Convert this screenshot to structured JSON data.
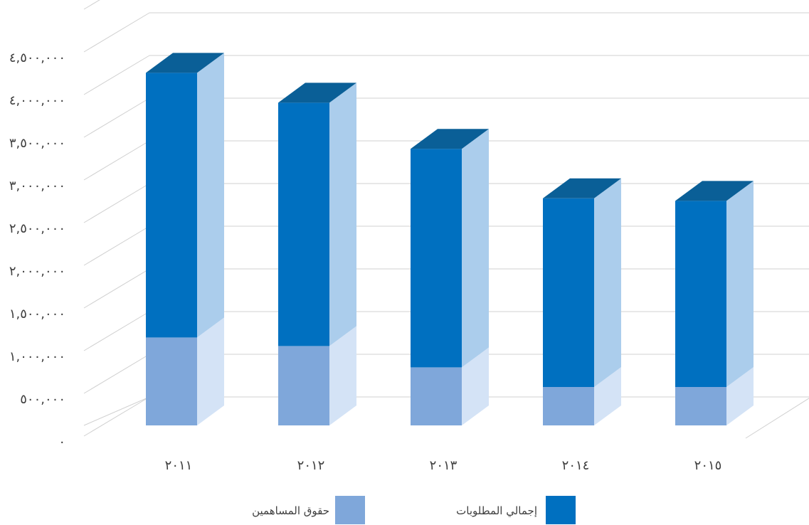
{
  "chart_data": {
    "type": "bar",
    "stacked": true,
    "three_d": true,
    "categories": [
      "٢٠١١",
      "٢٠١٢",
      "٢٠١٣",
      "٢٠١٤",
      "٢٠١٥"
    ],
    "series": [
      {
        "name": "حقوق المساهمين",
        "values": [
          1030000,
          930000,
          680000,
          450000,
          450000
        ],
        "color": "#7fa7da"
      },
      {
        "name": "إجمالي المطلوبات",
        "values": [
          3100000,
          2850000,
          2560000,
          2210000,
          2180000
        ],
        "color": "#0070c0"
      }
    ],
    "y_ticks": [
      {
        "value": 0,
        "label": "٠"
      },
      {
        "value": 500000,
        "label": "٥٠٠,٠٠٠"
      },
      {
        "value": 1000000,
        "label": "١,٠٠٠,٠٠٠"
      },
      {
        "value": 1500000,
        "label": "١,٥٠٠,٠٠٠"
      },
      {
        "value": 2000000,
        "label": "٢,٠٠٠,٠٠٠"
      },
      {
        "value": 2500000,
        "label": "٢,٥٠٠,٠٠٠"
      },
      {
        "value": 3000000,
        "label": "٣,٠٠٠,٠٠٠"
      },
      {
        "value": 3500000,
        "label": "٣,٥٠٠,٠٠٠"
      },
      {
        "value": 4000000,
        "label": "٤,٠٠٠,٠٠٠"
      },
      {
        "value": 4500000,
        "label": "٤,٥٠٠,٠٠٠"
      }
    ],
    "ylim": [
      0,
      5000000
    ],
    "grid": true,
    "legend_position": "bottom",
    "colors": {
      "equity_side": "#d4e3f6",
      "liabilities_side": "#abcdec",
      "liabilities_top": "#0a5f97",
      "grid": "#d0d0d0"
    }
  }
}
